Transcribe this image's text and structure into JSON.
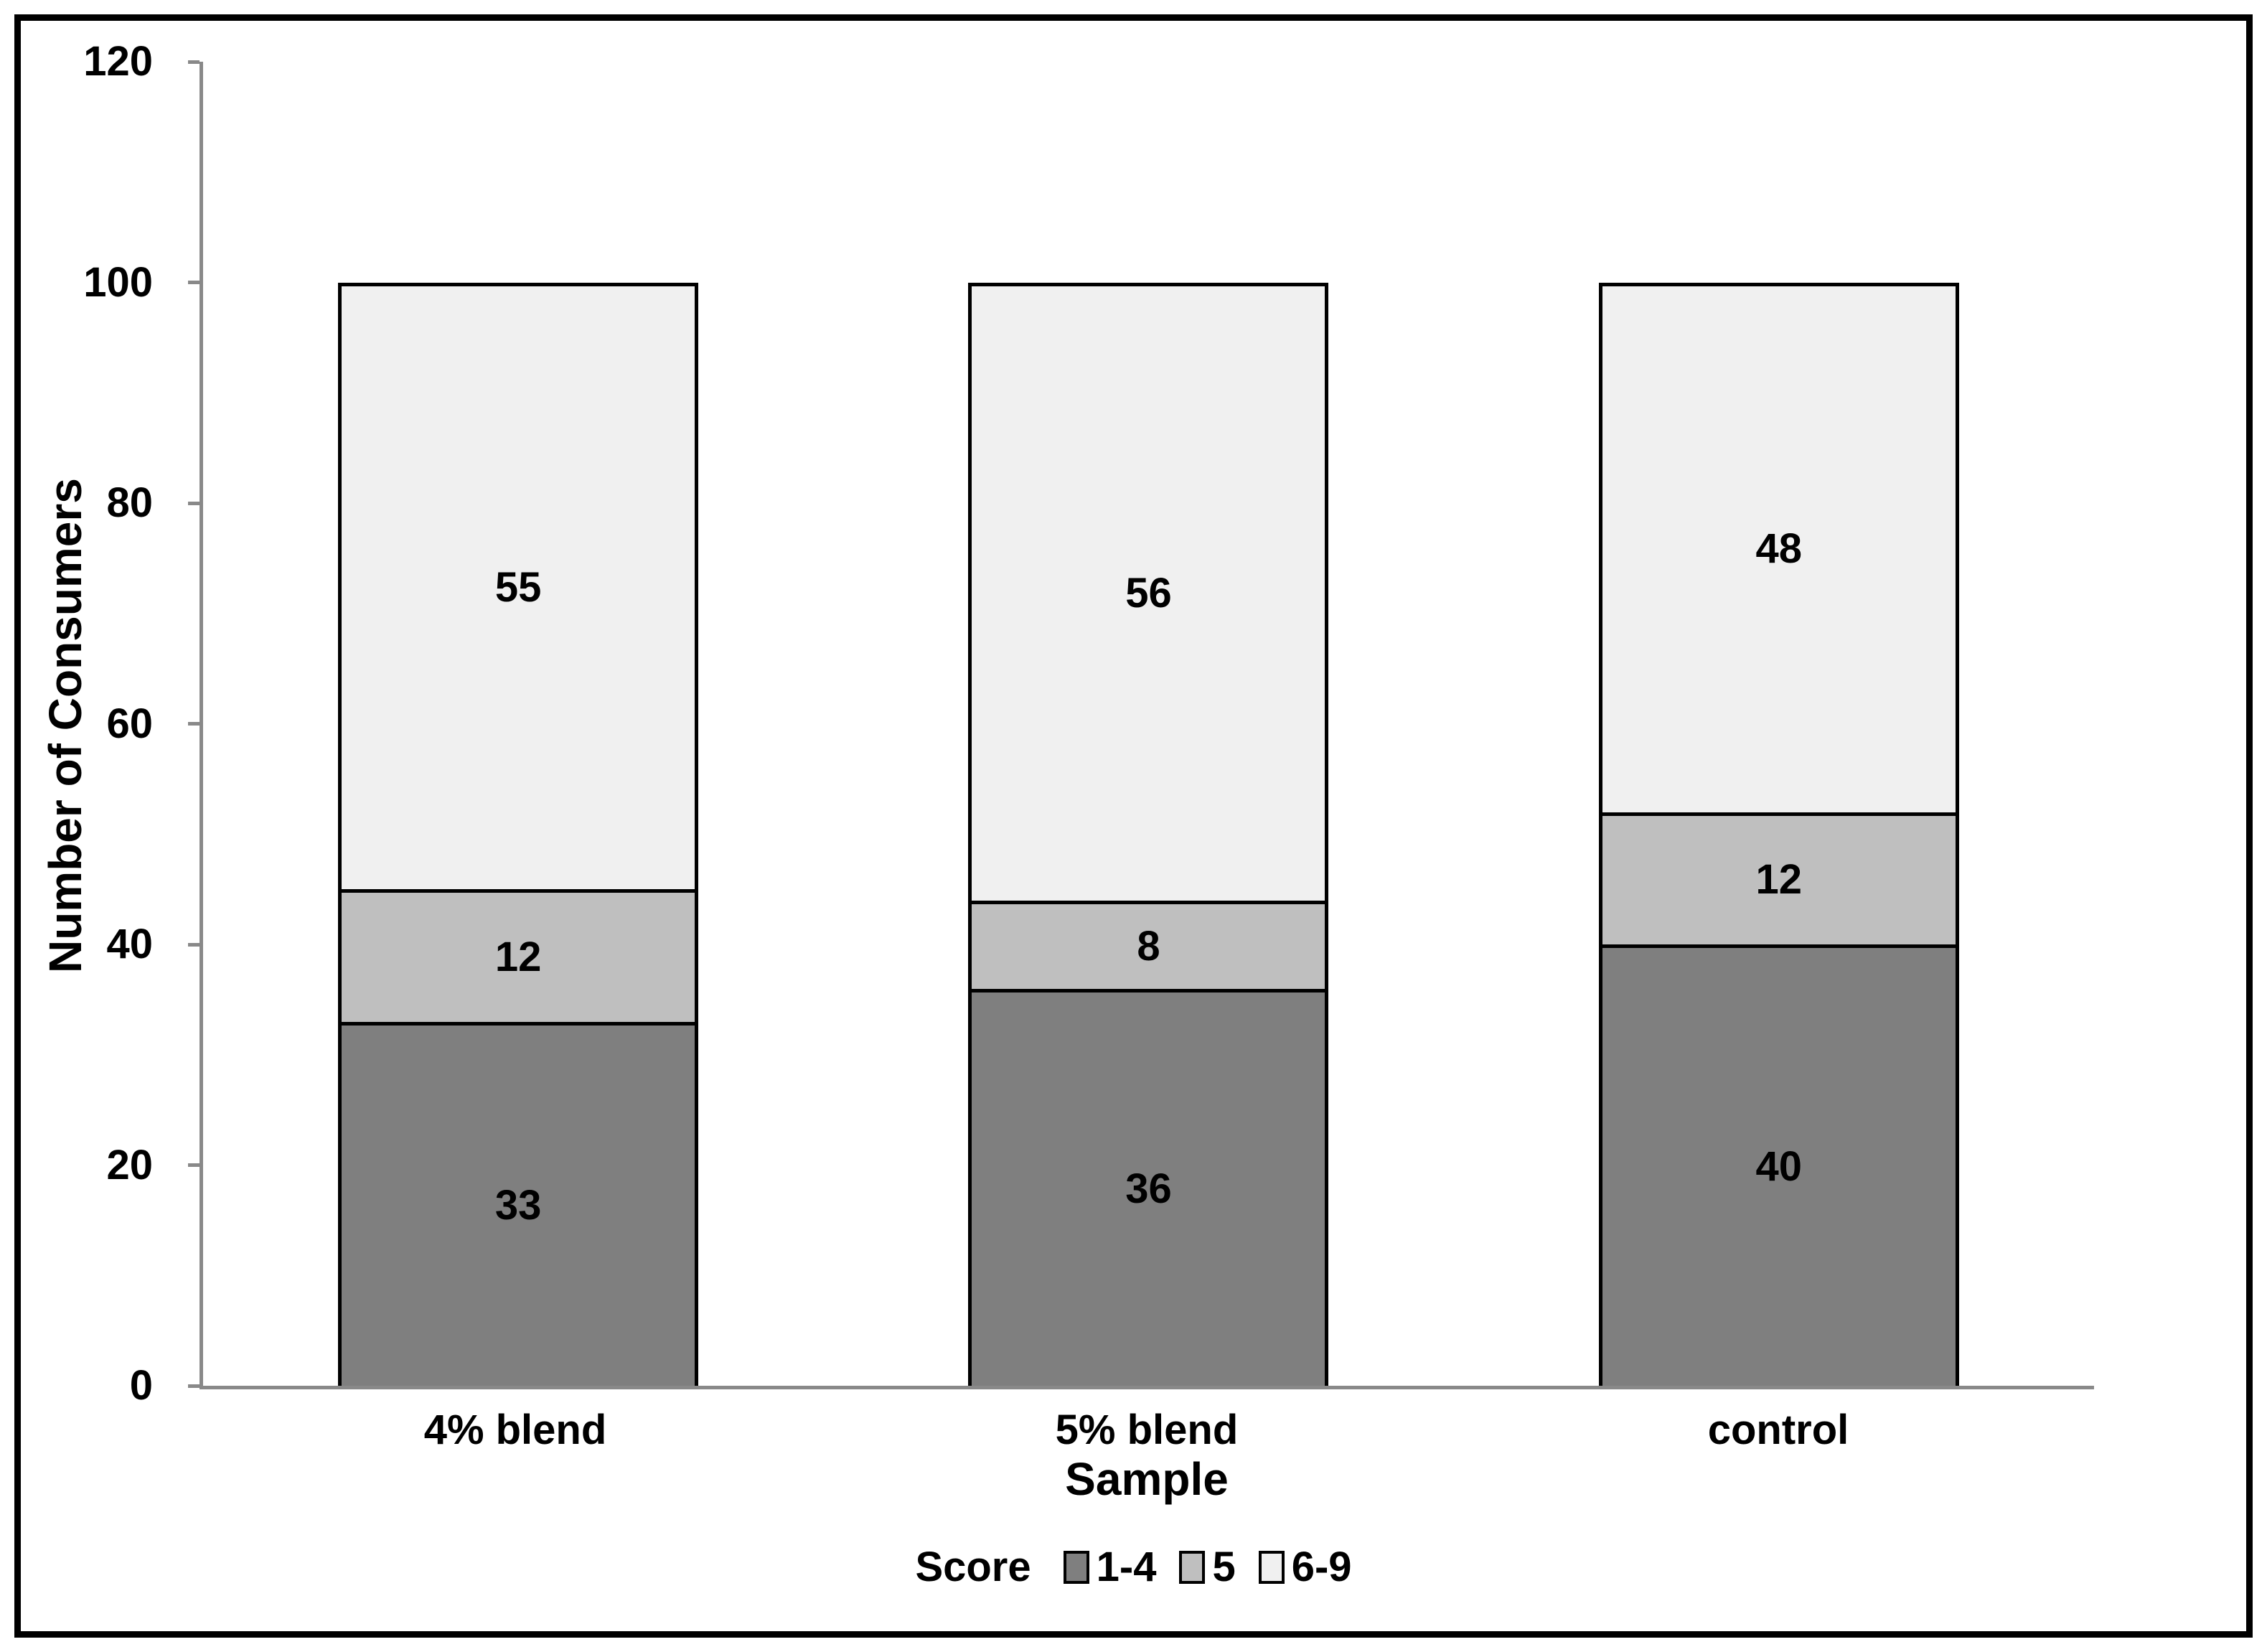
{
  "chart_data": {
    "type": "bar",
    "stacked": true,
    "title": "",
    "categories": [
      "4% blend",
      "5% blend",
      "control"
    ],
    "series": [
      {
        "name": "1-4",
        "color": "#7f7f7f",
        "values": [
          33,
          36,
          40
        ]
      },
      {
        "name": "5",
        "color": "#bfbfbf",
        "values": [
          12,
          8,
          12
        ]
      },
      {
        "name": "6-9",
        "color": "#f0f0f0",
        "values": [
          55,
          56,
          48
        ]
      }
    ],
    "xlabel": "Sample",
    "ylabel": "Number of Consumers",
    "ylim": [
      0,
      120
    ],
    "yticks": [
      0,
      20,
      40,
      60,
      80,
      100,
      120
    ],
    "grid": false,
    "data_labels": true,
    "legend": {
      "title": "Score",
      "position": "bottom",
      "entries": [
        "1-4",
        "5",
        "6-9"
      ]
    },
    "colors": {
      "axis": "#898989",
      "bar_border": "#000000",
      "frame_border": "#000000",
      "text": "#000000",
      "background": "#ffffff"
    }
  }
}
